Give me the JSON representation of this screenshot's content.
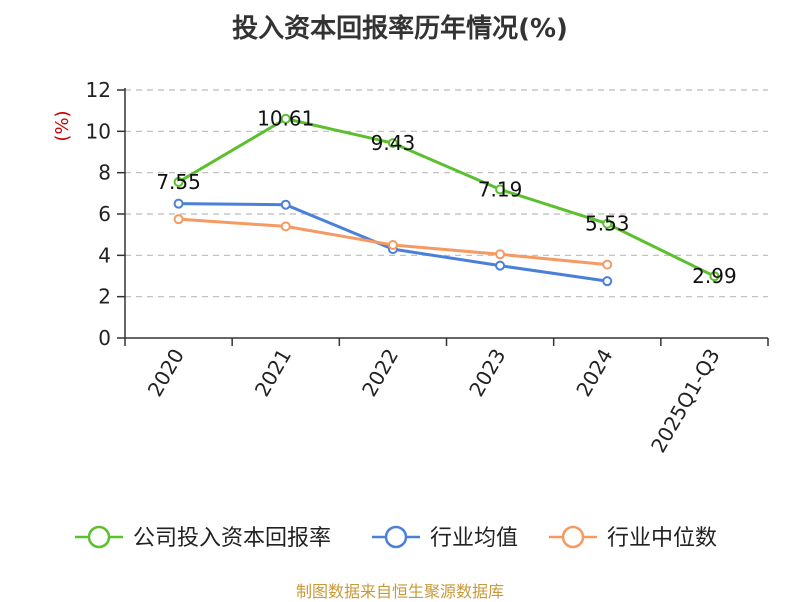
{
  "chart_data": {
    "type": "line",
    "title": "投入资本回报率历年情况(%)",
    "ylabel": "(%)",
    "xlabel": "",
    "categories": [
      "2020",
      "2021",
      "2022",
      "2023",
      "2024",
      "2025Q1-Q3"
    ],
    "ylim": [
      0,
      12
    ],
    "yticks": [
      0,
      2,
      4,
      6,
      8,
      10,
      12
    ],
    "grid": "horizontal dashed",
    "legend_position": "bottom",
    "series": [
      {
        "name": "公司投入资本回报率",
        "color": "#5cc02e",
        "values": [
          7.55,
          10.61,
          9.43,
          7.19,
          5.53,
          2.99
        ],
        "labels": [
          "7.55",
          "10.61",
          "9.43",
          "7.19",
          "5.53",
          "2.99"
        ]
      },
      {
        "name": "行业均值",
        "color": "#4a80d9",
        "values": [
          6.5,
          6.45,
          4.3,
          3.5,
          2.75,
          null
        ]
      },
      {
        "name": "行业中位数",
        "color": "#f59a62",
        "values": [
          5.75,
          5.4,
          4.5,
          4.05,
          3.55,
          null
        ]
      }
    ]
  },
  "footer": {
    "source": "制图数据来自恒生聚源数据库"
  }
}
